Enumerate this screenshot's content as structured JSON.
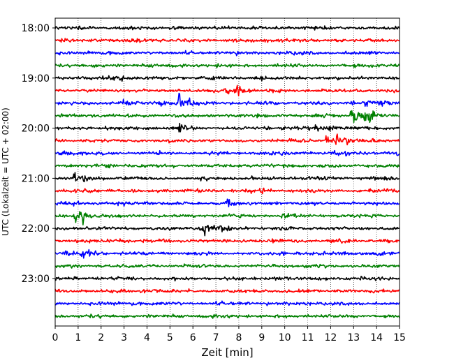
{
  "chart_data": {
    "type": "line",
    "title": "",
    "xlabel": "Zeit  [min]",
    "ylabel": "UTC (Lokalzeit = UTC + 02:00)",
    "xlim": [
      0,
      15
    ],
    "x_ticks": [
      0,
      1,
      2,
      3,
      4,
      5,
      6,
      7,
      8,
      9,
      10,
      11,
      12,
      13,
      14,
      15
    ],
    "x_tick_labels": [
      "0",
      "1",
      "2",
      "3",
      "4",
      "5",
      "6",
      "7",
      "8",
      "9",
      "10",
      "11",
      "12",
      "13",
      "14",
      "15"
    ],
    "y_tick_labels": [
      {
        "trace_index": 0,
        "label": "18:00"
      },
      {
        "trace_index": 4,
        "label": "19:00"
      },
      {
        "trace_index": 8,
        "label": "20:00"
      },
      {
        "trace_index": 12,
        "label": "21:00"
      },
      {
        "trace_index": 16,
        "label": "22:00"
      },
      {
        "trace_index": 20,
        "label": "23:00"
      }
    ],
    "grid": "vertical dotted",
    "trace_minutes": 15,
    "color_cycle": [
      "#000000",
      "#ff0000",
      "#0000ff",
      "#008000"
    ],
    "traces": [
      {
        "start": "18:00",
        "events": [
          {
            "t": 2.7,
            "amp": 0.18
          },
          {
            "t": 5.2,
            "amp": 0.15
          },
          {
            "t": 7.5,
            "amp": 0.12
          },
          {
            "t": 11.2,
            "amp": 0.45
          }
        ]
      },
      {
        "start": "18:15",
        "events": [
          {
            "t": 3.5,
            "amp": 0.15
          },
          {
            "t": 9.8,
            "amp": 0.35
          }
        ]
      },
      {
        "start": "18:30",
        "events": [
          {
            "t": 1.5,
            "amp": 0.12
          }
        ]
      },
      {
        "start": "18:45",
        "events": [
          {
            "t": 3.2,
            "amp": 0.15
          },
          {
            "t": 6.8,
            "amp": 0.2
          }
        ]
      },
      {
        "start": "19:00",
        "events": [
          {
            "t": 2.5,
            "amp": 0.4
          },
          {
            "t": 2.9,
            "amp": 0.5
          },
          {
            "t": 5.3,
            "amp": 0.2
          },
          {
            "t": 9.0,
            "amp": 0.15
          }
        ]
      },
      {
        "start": "19:15",
        "events": [
          {
            "t": 7.5,
            "amp": 0.6
          },
          {
            "t": 7.9,
            "amp": 1.4
          },
          {
            "t": 8.2,
            "amp": 0.4
          }
        ]
      },
      {
        "start": "19:30",
        "events": [
          {
            "t": 3.0,
            "amp": 1.3
          },
          {
            "t": 4.6,
            "amp": 0.8
          },
          {
            "t": 5.4,
            "amp": 2.5
          },
          {
            "t": 5.8,
            "amp": 0.7
          },
          {
            "t": 12.9,
            "amp": 0.4
          },
          {
            "t": 13.5,
            "amp": 0.6
          },
          {
            "t": 14.2,
            "amp": 0.7
          }
        ]
      },
      {
        "start": "19:45",
        "events": [
          {
            "t": 12.9,
            "amp": 2.2
          },
          {
            "t": 13.3,
            "amp": 1.6
          },
          {
            "t": 13.7,
            "amp": 0.6
          }
        ]
      },
      {
        "start": "20:00",
        "events": [
          {
            "t": 3.5,
            "amp": 0.2
          },
          {
            "t": 5.4,
            "amp": 1.0
          },
          {
            "t": 11.3,
            "amp": 0.6
          },
          {
            "t": 12.0,
            "amp": 0.4
          }
        ]
      },
      {
        "start": "20:15",
        "events": [
          {
            "t": 11.8,
            "amp": 1.2
          },
          {
            "t": 12.2,
            "amp": 1.4
          },
          {
            "t": 12.6,
            "amp": 0.5
          },
          {
            "t": 13.8,
            "amp": 0.6
          }
        ]
      },
      {
        "start": "20:30",
        "events": [
          {
            "t": 0.4,
            "amp": 0.8
          },
          {
            "t": 9.8,
            "amp": 0.3
          },
          {
            "t": 12.2,
            "amp": 0.4
          },
          {
            "t": 14.9,
            "amp": 0.4
          }
        ]
      },
      {
        "start": "20:45",
        "events": [
          {
            "t": 2.3,
            "amp": 0.25
          },
          {
            "t": 4.8,
            "amp": 0.2
          },
          {
            "t": 9.8,
            "amp": 0.15
          }
        ]
      },
      {
        "start": "21:00",
        "events": [
          {
            "t": 0.8,
            "amp": 0.9
          },
          {
            "t": 1.2,
            "amp": 0.4
          },
          {
            "t": 13.8,
            "amp": 0.35
          }
        ]
      },
      {
        "start": "21:15",
        "events": [
          {
            "t": 1.4,
            "amp": 0.5
          },
          {
            "t": 8.5,
            "amp": 0.7
          },
          {
            "t": 9.0,
            "amp": 0.4
          }
        ]
      },
      {
        "start": "21:30",
        "events": [
          {
            "t": 0.8,
            "amp": 0.3
          },
          {
            "t": 3.9,
            "amp": 0.35
          },
          {
            "t": 7.5,
            "amp": 0.6
          }
        ]
      },
      {
        "start": "21:45",
        "events": [
          {
            "t": 0.9,
            "amp": 1.5
          },
          {
            "t": 1.2,
            "amp": 2.2
          },
          {
            "t": 9.8,
            "amp": 0.5
          }
        ]
      },
      {
        "start": "22:00",
        "events": [
          {
            "t": 6.3,
            "amp": 0.9
          },
          {
            "t": 6.5,
            "amp": 1.2
          },
          {
            "t": 7.0,
            "amp": 0.6
          },
          {
            "t": 7.3,
            "amp": 0.4
          }
        ]
      },
      {
        "start": "22:15",
        "events": [
          {
            "t": 2.8,
            "amp": 0.3
          },
          {
            "t": 4.7,
            "amp": 0.2
          }
        ]
      },
      {
        "start": "22:30",
        "events": [
          {
            "t": 0.5,
            "amp": 0.9
          },
          {
            "t": 1.1,
            "amp": 1.1
          },
          {
            "t": 1.5,
            "amp": 0.5
          },
          {
            "t": 14.0,
            "amp": 0.4
          }
        ]
      },
      {
        "start": "22:45",
        "events": [
          {
            "t": 3.0,
            "amp": 0.2
          },
          {
            "t": 9.5,
            "amp": 0.15
          }
        ]
      },
      {
        "start": "23:00",
        "events": [
          {
            "t": 3.3,
            "amp": 0.2
          },
          {
            "t": 9.6,
            "amp": 0.15
          }
        ]
      },
      {
        "start": "23:15",
        "events": [
          {
            "t": 3.8,
            "amp": 0.3
          },
          {
            "t": 4.2,
            "amp": 0.25
          },
          {
            "t": 13.8,
            "amp": 0.2
          }
        ]
      },
      {
        "start": "23:30",
        "events": [
          {
            "t": 3.3,
            "amp": 0.25
          },
          {
            "t": 6.3,
            "amp": 0.12
          }
        ]
      },
      {
        "start": "23:45",
        "events": [
          {
            "t": 8.0,
            "amp": 0.12
          }
        ]
      }
    ]
  }
}
